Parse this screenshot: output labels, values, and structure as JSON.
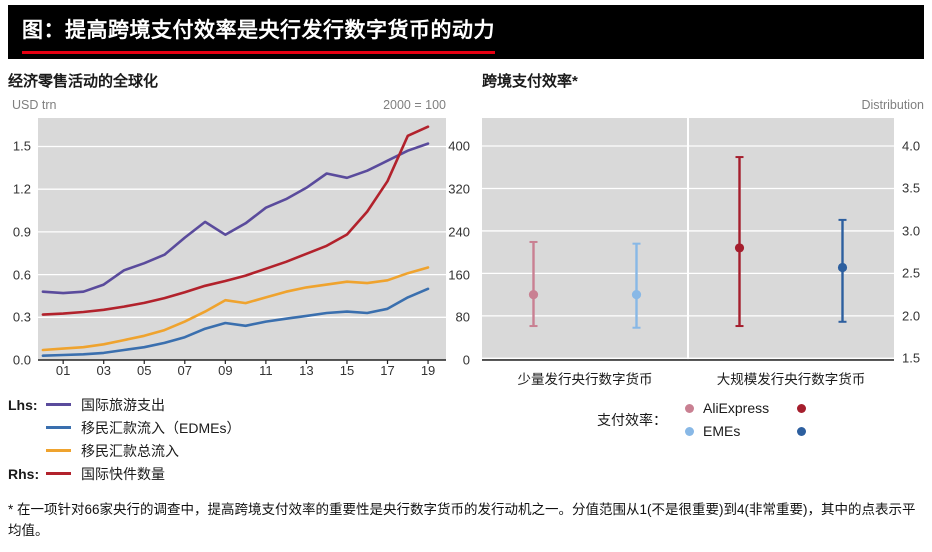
{
  "header": {
    "title": "图：提高跨境支付效率是央行发行数字货币的动力"
  },
  "colors": {
    "title_underline": "#e60012",
    "plot_background": "#d9d9d9",
    "gridline": "#ffffff",
    "axis_unit_text": "#7f7f7f",
    "purple": "#5a4b9c",
    "blue": "#3a6fae",
    "orange": "#efa32e",
    "red": "#b2222c",
    "pink_light": "#c98092",
    "red_dark": "#a51e2d",
    "blue_light": "#88b8e6",
    "blue_dark": "#2d5f9f"
  },
  "left_chart": {
    "title": "经济零售活动的全球化",
    "y_left_label": "USD trn",
    "y_right_label": "2000 = 100",
    "y_left_ticks": [
      "1.5",
      "1.2",
      "0.9",
      "0.6",
      "0.3",
      "0.0"
    ],
    "y_right_ticks": [
      "400",
      "320",
      "240",
      "160",
      "80",
      "0"
    ],
    "x_ticks": [
      "01",
      "03",
      "05",
      "07",
      "09",
      "11",
      "13",
      "15",
      "17",
      "19"
    ],
    "legend": [
      {
        "prefix": "Lhs:",
        "label": "国际旅游支出",
        "color": "#5a4b9c"
      },
      {
        "prefix": "",
        "label": "移民汇款流入（EDMEs）",
        "color": "#3a6fae"
      },
      {
        "prefix": "",
        "label": "移民汇款总流入",
        "color": "#efa32e"
      },
      {
        "prefix": "Rhs:",
        "label": "国际快件数量",
        "color": "#b2222c"
      }
    ]
  },
  "right_chart": {
    "title": "跨境支付效率*",
    "y_right_label": "Distribution",
    "y_ticks": [
      "4.0",
      "3.5",
      "3.0",
      "2.5",
      "2.0",
      "1.5"
    ],
    "group_labels": [
      "少量发行央行数字货币",
      "大规模发行央行数字货币"
    ],
    "legend_title": "支付效率：",
    "legend_rows": [
      {
        "label": "AliExpress",
        "light": "#c98092",
        "dark": "#a51e2d"
      },
      {
        "label": "EMEs",
        "light": "#88b8e6",
        "dark": "#2d5f9f"
      }
    ]
  },
  "footnote": "* 在一项针对66家央行的调查中，提高跨境支付效率的重要性是央行数字货币的发行动机之一。分值范围从1(不是很重要)到4(非常重要)，其中的点表示平均值。",
  "chart_data": [
    {
      "type": "line",
      "title": "经济零售活动的全球化",
      "x": [
        2000,
        2001,
        2002,
        2003,
        2004,
        2005,
        2006,
        2007,
        2008,
        2009,
        2010,
        2011,
        2012,
        2013,
        2014,
        2015,
        2016,
        2017,
        2018,
        2019
      ],
      "left_axis": {
        "label": "USD trn",
        "min": 0,
        "max": 1.7,
        "ticks": [
          0,
          0.3,
          0.6,
          0.9,
          1.2,
          1.5
        ]
      },
      "right_axis": {
        "label": "2000 = 100",
        "min": 0,
        "max": 453.3,
        "ticks": [
          0,
          80,
          160,
          240,
          320,
          400
        ]
      },
      "series": [
        {
          "name": "国际旅游支出",
          "axis": "left",
          "color": "#5a4b9c",
          "values": [
            0.48,
            0.47,
            0.48,
            0.53,
            0.63,
            0.68,
            0.74,
            0.86,
            0.97,
            0.88,
            0.96,
            1.07,
            1.13,
            1.21,
            1.31,
            1.28,
            1.33,
            1.4,
            1.47,
            1.52
          ]
        },
        {
          "name": "移民汇款流入（EDMEs）",
          "axis": "left",
          "color": "#3a6fae",
          "values": [
            0.03,
            0.035,
            0.04,
            0.05,
            0.07,
            0.09,
            0.12,
            0.16,
            0.22,
            0.26,
            0.24,
            0.27,
            0.29,
            0.31,
            0.33,
            0.34,
            0.33,
            0.36,
            0.44,
            0.5
          ]
        },
        {
          "name": "移民汇款总流入",
          "axis": "left",
          "color": "#efa32e",
          "values": [
            0.07,
            0.08,
            0.09,
            0.11,
            0.14,
            0.17,
            0.21,
            0.27,
            0.34,
            0.42,
            0.4,
            0.44,
            0.48,
            0.51,
            0.53,
            0.55,
            0.54,
            0.56,
            0.61,
            0.65
          ]
        },
        {
          "name": "国际快件数量",
          "axis": "right",
          "color": "#b2222c",
          "values": [
            85,
            87,
            90,
            94,
            100,
            107,
            116,
            127,
            139,
            148,
            158,
            171,
            184,
            199,
            214,
            235,
            278,
            335,
            420,
            437
          ]
        }
      ]
    },
    {
      "type": "range-dot",
      "title": "跨境支付效率*",
      "axis": {
        "label": "Distribution",
        "min": 1.48,
        "max": 4.33,
        "ticks": [
          1.5,
          2.0,
          2.5,
          3.0,
          3.5,
          4.0
        ]
      },
      "groups": [
        "少量发行央行数字货币",
        "大规模发行央行数字货币"
      ],
      "points": [
        {
          "group": 0,
          "series": "AliExpress",
          "color": "#c98092",
          "x": 0.125,
          "low": 1.88,
          "high": 2.87,
          "mean": 2.25
        },
        {
          "group": 0,
          "series": "EMEs",
          "color": "#88b8e6",
          "x": 0.375,
          "low": 1.86,
          "high": 2.85,
          "mean": 2.25
        },
        {
          "group": 1,
          "series": "AliExpress",
          "color": "#a51e2d",
          "x": 0.625,
          "low": 1.88,
          "high": 3.87,
          "mean": 2.8
        },
        {
          "group": 1,
          "series": "EMEs",
          "color": "#2d5f9f",
          "x": 0.875,
          "low": 1.93,
          "high": 3.13,
          "mean": 2.57
        }
      ]
    }
  ]
}
